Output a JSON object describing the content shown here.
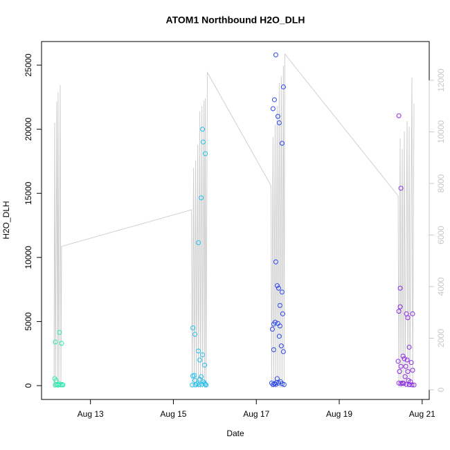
{
  "chart_data": {
    "type": "scatter",
    "title": "ATOM1 Northbound H2O_DLH",
    "x_label": "Date",
    "y_label": "H2O_DLH",
    "xlim": [
      11.82,
      21.17
    ],
    "ylim": [
      -1080,
      26840
    ],
    "y2lim": [
      -376,
      13503
    ],
    "xticks": [
      {
        "value": 13,
        "label": "Aug 13"
      },
      {
        "value": 15,
        "label": "Aug 15"
      },
      {
        "value": 17,
        "label": "Aug 17"
      },
      {
        "value": 19,
        "label": "Aug 19"
      },
      {
        "value": 21,
        "label": "Aug 21"
      }
    ],
    "yticks": [
      0,
      5000,
      10000,
      15000,
      20000,
      25000
    ],
    "y2ticks": [
      0,
      2000,
      4000,
      6000,
      8000,
      10000,
      12000
    ],
    "y2_color": "#c8c8c8",
    "series": [
      {
        "type": "line",
        "axis": "y2",
        "color": "#cfcfcf",
        "x": [
          12.12,
          12.137,
          12.153,
          12.187,
          12.203,
          12.22,
          12.237,
          12.27,
          12.287,
          12.303,
          15.437,
          15.453,
          15.487,
          15.503,
          15.537,
          15.553,
          15.587,
          15.603,
          15.637,
          15.653,
          15.687,
          15.703,
          15.737,
          15.753,
          15.77,
          15.787,
          15.82,
          17.353,
          17.37,
          17.403,
          17.42,
          17.453,
          17.47,
          17.503,
          17.52,
          17.553,
          17.57,
          17.603,
          17.62,
          17.653,
          17.67,
          17.687,
          20.42,
          20.437,
          20.47,
          20.487,
          20.52,
          20.537,
          20.57,
          20.587,
          20.637,
          20.653,
          20.687,
          20.703,
          20.753,
          20.77,
          20.803
        ],
        "values": [
          80,
          10360,
          80,
          11170,
          80,
          11540,
          80,
          11810,
          80,
          5560,
          6980,
          80,
          8600,
          80,
          8900,
          80,
          9500,
          80,
          10800,
          80,
          11000,
          80,
          11200,
          80,
          11300,
          80,
          12300,
          7920,
          80,
          9800,
          80,
          10280,
          80,
          11000,
          80,
          11900,
          80,
          12160,
          80,
          12560,
          80,
          13020,
          7520,
          80,
          9740,
          80,
          9340,
          80,
          10010,
          80,
          10420,
          80,
          10200,
          80,
          12110,
          80,
          11090
        ]
      },
      {
        "type": "scatter",
        "color": "#2ee8b0",
        "x": [
          12.153,
          12.137,
          12.17,
          12.253,
          12.303,
          12.153,
          12.187,
          12.22,
          12.253,
          12.287,
          12.32,
          12.337
        ],
        "values": [
          3400,
          550,
          400,
          4150,
          3300,
          50,
          80,
          40,
          120,
          60,
          90,
          50
        ]
      },
      {
        "type": "scatter",
        "color": "#22c0f0",
        "x": [
          15.47,
          15.52,
          15.603,
          15.67,
          15.603,
          15.637,
          15.703,
          15.753,
          15.703,
          15.72,
          15.77,
          15.47,
          15.503,
          15.52,
          15.57,
          15.637,
          15.67,
          15.72,
          15.753,
          15.77,
          15.453,
          15.537,
          15.62,
          15.687,
          15.787
        ],
        "values": [
          4500,
          4000,
          11150,
          14650,
          2700,
          2000,
          2400,
          1600,
          20000,
          19000,
          18100,
          750,
          800,
          400,
          150,
          500,
          700,
          300,
          200,
          100,
          50,
          60,
          80,
          90,
          50
        ]
      },
      {
        "type": "scatter",
        "color": "#2a46ee",
        "x": [
          17.47,
          17.437,
          17.403,
          17.52,
          17.553,
          17.653,
          17.62,
          17.47,
          17.503,
          17.537,
          17.62,
          17.57,
          17.637,
          17.42,
          17.453,
          17.52,
          17.57,
          17.387,
          17.553,
          17.603,
          17.42,
          17.653,
          17.503,
          17.37,
          17.437,
          17.47,
          17.537,
          17.587,
          17.62,
          17.67,
          17.403,
          17.487
        ],
        "values": [
          25800,
          22300,
          21600,
          21000,
          20500,
          23300,
          18900,
          9650,
          7800,
          7600,
          7300,
          6250,
          5600,
          4800,
          4950,
          4850,
          4650,
          4400,
          3850,
          3100,
          2800,
          2650,
          550,
          200,
          150,
          100,
          200,
          300,
          150,
          80,
          80,
          250
        ]
      },
      {
        "type": "scatter",
        "color": "#8a2be2",
        "x": [
          20.437,
          20.487,
          20.47,
          20.47,
          20.437,
          20.62,
          20.77,
          20.653,
          20.687,
          20.42,
          20.537,
          20.57,
          20.637,
          20.737,
          20.487,
          20.603,
          20.77,
          20.453,
          20.653,
          20.587,
          20.67,
          20.72,
          20.437,
          20.487,
          20.52,
          20.553,
          20.62,
          20.687,
          20.753,
          20.803
        ],
        "values": [
          21050,
          15400,
          7600,
          6150,
          5800,
          5600,
          5600,
          5300,
          3000,
          1900,
          2300,
          2100,
          2000,
          1800,
          1500,
          1500,
          1200,
          1100,
          1100,
          700,
          400,
          300,
          200,
          150,
          200,
          180,
          100,
          80,
          60,
          50
        ]
      }
    ]
  }
}
